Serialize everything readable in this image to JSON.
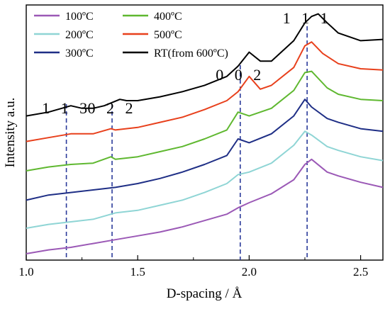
{
  "chart_data": {
    "type": "line",
    "title": "",
    "xlabel": "D-spacing / Å",
    "ylabel": "Intensity a.u.",
    "xlim": [
      1.0,
      2.6
    ],
    "ylim": [
      0,
      100
    ],
    "x_ticks": [
      1.0,
      1.5,
      2.0,
      2.5
    ],
    "x_tick_labels": [
      "1.0",
      "1.5",
      "2.0",
      "2.5"
    ],
    "y_ticks_shown": false,
    "stacked_offset": true,
    "grid": false,
    "legend_position": "top-left",
    "legend": [
      {
        "label": "100ºC",
        "color": "#9b59b6"
      },
      {
        "label": "400ºC",
        "color": "#5fb830"
      },
      {
        "label": "200ºC",
        "color": "#8fd5d5"
      },
      {
        "label": "500ºC",
        "color": "#e8401c"
      },
      {
        "label": "300ºC",
        "color": "#1f2f86"
      },
      {
        "label": "RT(from 600ºC)",
        "color": "#000000"
      }
    ],
    "reference_lines": [
      {
        "x": 1.18,
        "label": "1 1 3"
      },
      {
        "x": 1.385,
        "label": "0 2 2"
      },
      {
        "x": 1.96,
        "label": "0 0 2"
      },
      {
        "x": 2.26,
        "label": "1 1 1"
      }
    ],
    "series": [
      {
        "name": "100ºC",
        "color": "#9b59b6",
        "x": [
          1.0,
          1.1,
          1.2,
          1.3,
          1.4,
          1.5,
          1.6,
          1.7,
          1.8,
          1.9,
          1.95,
          2.0,
          2.1,
          2.2,
          2.25,
          2.28,
          2.35,
          2.4,
          2.5,
          2.6
        ],
        "y": [
          2.5,
          4.0,
          5.0,
          6.5,
          8.0,
          9.5,
          11.0,
          13.0,
          15.5,
          18.0,
          20.5,
          22.5,
          26.0,
          31.5,
          37.5,
          39.5,
          34.5,
          33.0,
          30.5,
          28.5
        ]
      },
      {
        "name": "200ºC",
        "color": "#8fd5d5",
        "x": [
          1.0,
          1.1,
          1.2,
          1.3,
          1.4,
          1.5,
          1.6,
          1.7,
          1.8,
          1.9,
          1.95,
          2.0,
          2.1,
          2.2,
          2.25,
          2.28,
          2.35,
          2.4,
          2.5,
          2.6
        ],
        "y": [
          12.5,
          14.0,
          15.0,
          16.0,
          18.5,
          19.5,
          21.5,
          23.5,
          26.5,
          30.0,
          33.5,
          34.5,
          38.0,
          45.0,
          50.5,
          49.0,
          44.5,
          43.0,
          40.5,
          39.0
        ]
      },
      {
        "name": "300ºC",
        "color": "#1f2f86",
        "x": [
          1.0,
          1.1,
          1.2,
          1.3,
          1.4,
          1.5,
          1.6,
          1.7,
          1.8,
          1.9,
          1.95,
          2.0,
          2.1,
          2.2,
          2.25,
          2.28,
          2.35,
          2.4,
          2.5,
          2.6
        ],
        "y": [
          23.5,
          25.5,
          26.5,
          27.5,
          28.5,
          30.0,
          32.0,
          34.5,
          37.5,
          41.0,
          47.5,
          46.0,
          49.5,
          56.5,
          63.0,
          60.0,
          55.5,
          54.0,
          51.5,
          50.5
        ]
      },
      {
        "name": "400ºC",
        "color": "#5fb830",
        "x": [
          1.0,
          1.1,
          1.2,
          1.3,
          1.38,
          1.4,
          1.5,
          1.6,
          1.7,
          1.8,
          1.9,
          1.95,
          2.0,
          2.1,
          2.2,
          2.25,
          2.28,
          2.35,
          2.4,
          2.5,
          2.6
        ],
        "y": [
          35.0,
          36.5,
          37.5,
          38.0,
          40.5,
          39.5,
          40.5,
          42.5,
          44.5,
          47.5,
          51.0,
          58.0,
          56.5,
          59.5,
          66.5,
          73.5,
          74.0,
          67.5,
          65.0,
          63.0,
          62.5
        ]
      },
      {
        "name": "500ºC",
        "color": "#e8401c",
        "x": [
          1.0,
          1.1,
          1.2,
          1.3,
          1.38,
          1.4,
          1.5,
          1.6,
          1.7,
          1.8,
          1.9,
          1.95,
          2.0,
          2.05,
          2.1,
          2.2,
          2.25,
          2.28,
          2.33,
          2.4,
          2.5,
          2.6
        ],
        "y": [
          46.5,
          48.0,
          49.5,
          49.5,
          51.5,
          51.0,
          52.0,
          54.0,
          56.0,
          59.0,
          62.5,
          66.0,
          72.0,
          67.0,
          68.5,
          75.5,
          84.0,
          85.5,
          81.0,
          77.0,
          75.0,
          74.5
        ]
      },
      {
        "name": "RT(from 600ºC)",
        "color": "#000000",
        "x": [
          1.0,
          1.1,
          1.2,
          1.25,
          1.3,
          1.35,
          1.42,
          1.45,
          1.5,
          1.6,
          1.7,
          1.8,
          1.9,
          1.95,
          2.0,
          2.05,
          2.1,
          2.2,
          2.25,
          2.28,
          2.31,
          2.35,
          2.4,
          2.5,
          2.6
        ],
        "y": [
          56.5,
          58.0,
          60.5,
          59.5,
          59.5,
          60.5,
          63.0,
          62.5,
          62.5,
          64.0,
          66.0,
          68.5,
          72.0,
          76.0,
          81.5,
          78.0,
          78.0,
          86.0,
          93.0,
          95.5,
          96.5,
          93.0,
          89.0,
          86.0,
          86.5
        ]
      }
    ]
  }
}
